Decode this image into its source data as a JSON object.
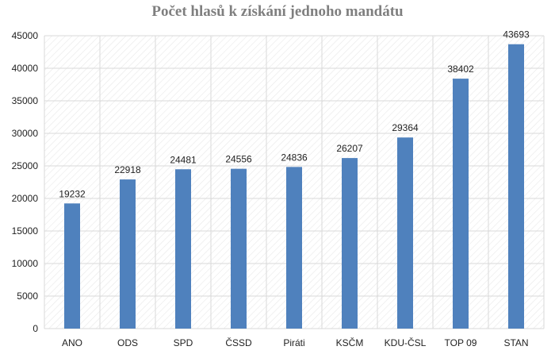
{
  "chart_data": {
    "type": "bar",
    "title": "Počet hlasů k získání jednoho mandátu",
    "xlabel": "",
    "ylabel": "",
    "categories": [
      "ANO",
      "ODS",
      "SPD",
      "ČSSD",
      "Piráti",
      "KSČM",
      "KDU-ČSL",
      "TOP 09",
      "STAN"
    ],
    "values": [
      19232,
      22918,
      24481,
      24556,
      24836,
      26207,
      29364,
      38402,
      43693
    ],
    "ylim": [
      0,
      45000
    ],
    "yticks": [
      0,
      5000,
      10000,
      15000,
      20000,
      25000,
      30000,
      35000,
      40000,
      45000
    ],
    "data_labels": true,
    "grid": true,
    "legend": "none",
    "colors": {
      "bar": "#4f81bd",
      "grid": "#d9d9d9",
      "title": "#7f7f7f",
      "text": "#222222"
    }
  }
}
